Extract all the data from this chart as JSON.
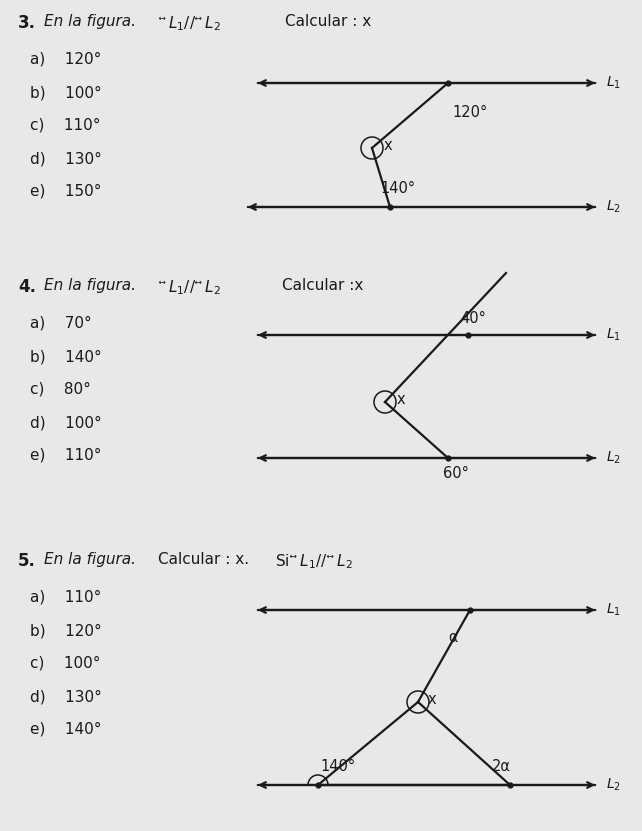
{
  "bg_color": "#e8e8e8",
  "text_color": "#1a1a1a",
  "fig_width": 6.42,
  "fig_height": 8.31,
  "problem3": {
    "number": "3.",
    "text": "En la figura.",
    "parallel_label": "$\\overleftrightarrow{L_1}$// $\\overleftrightarrow{L_2}$",
    "calc_text": "Calcular : x",
    "options": [
      "a)    120°",
      "b)    100°",
      "c)    110°",
      "d)    130°",
      "e)    150°"
    ],
    "angle1_label": "120°",
    "angle2_label": "140°",
    "x_label": "x",
    "L1_label": "$L_1$",
    "L2_label": "$L_2$"
  },
  "problem4": {
    "number": "4.",
    "text": "En la figura.",
    "parallel_label": "$\\overleftrightarrow{L_1}$// $\\overleftrightarrow{L_2}$",
    "calc_text": "Calcular :x",
    "options": [
      "a)    70°",
      "b)    140°",
      "c)    80°",
      "d)    100°",
      "e)    110°"
    ],
    "angle1_label": "40°",
    "angle2_label": "60°",
    "x_label": "x",
    "L1_label": "$L_1$",
    "L2_label": "$L_2$"
  },
  "problem5": {
    "number": "5.",
    "text": "En la figura.",
    "calc_text": "Calcular : x.",
    "parallel_text": "Si $\\overleftrightarrow{L_1}$// $\\overleftrightarrow{L_2}$",
    "options": [
      "a)    110°",
      "b)    120°",
      "c)    100°",
      "d)    130°",
      "e)    140°"
    ],
    "angle1_label": "140°",
    "angle2_label": "2α",
    "angle3_label": "α",
    "x_label": "x",
    "L1_label": "$L_1$",
    "L2_label": "$L_2$"
  }
}
